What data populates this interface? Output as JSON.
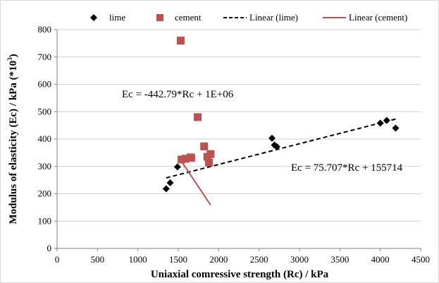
{
  "chart_data": {
    "type": "scatter",
    "xlabel": "Uniaxial comressive strength (Rc) / kPa",
    "ylabel_main": "Modulus of elasticity (Ec) / kPa (*10",
    "ylabel_sup": "3",
    "ylabel_end": ")",
    "xlim": [
      0,
      4500
    ],
    "ylim": [
      0,
      800
    ],
    "xticks": [
      0,
      500,
      1000,
      1500,
      2000,
      2500,
      3000,
      3500,
      4000,
      4500
    ],
    "yticks": [
      0,
      100,
      200,
      300,
      400,
      500,
      600,
      700,
      800
    ],
    "grid": "horizontal",
    "legend_position": "top",
    "series": [
      {
        "name": "lime",
        "marker": "diamond",
        "color": "#000000",
        "points": [
          [
            1350,
            218
          ],
          [
            1400,
            240
          ],
          [
            1490,
            298
          ],
          [
            2660,
            403
          ],
          [
            2690,
            378
          ],
          [
            2720,
            372
          ],
          [
            4000,
            458
          ],
          [
            4080,
            468
          ],
          [
            4190,
            440
          ]
        ]
      },
      {
        "name": "cement",
        "marker": "square",
        "color": "#C0504D",
        "points": [
          [
            1530,
            760
          ],
          [
            1540,
            325
          ],
          [
            1590,
            328
          ],
          [
            1650,
            333
          ],
          [
            1660,
            331
          ],
          [
            1740,
            480
          ],
          [
            1820,
            373
          ],
          [
            1860,
            335
          ],
          [
            1880,
            314
          ],
          [
            1900,
            345
          ]
        ]
      }
    ],
    "trendlines": [
      {
        "name": "Linear (lime)",
        "style": "dashed",
        "color": "#000000",
        "x_range": [
          1350,
          4190
        ],
        "slope": 75.707,
        "intercept": 155714,
        "scale": 0.001
      },
      {
        "name": "Linear (cement)",
        "style": "solid",
        "color": "#C0504D",
        "x_range": [
          1530,
          1900
        ],
        "slope": -442.79,
        "intercept": 1000000,
        "scale": 0.001
      }
    ],
    "annotations": [
      {
        "text": "Ec = -442.79*Rc + 1E+06"
      },
      {
        "text": "Ec = 75.707*Rc + 155714"
      }
    ]
  }
}
